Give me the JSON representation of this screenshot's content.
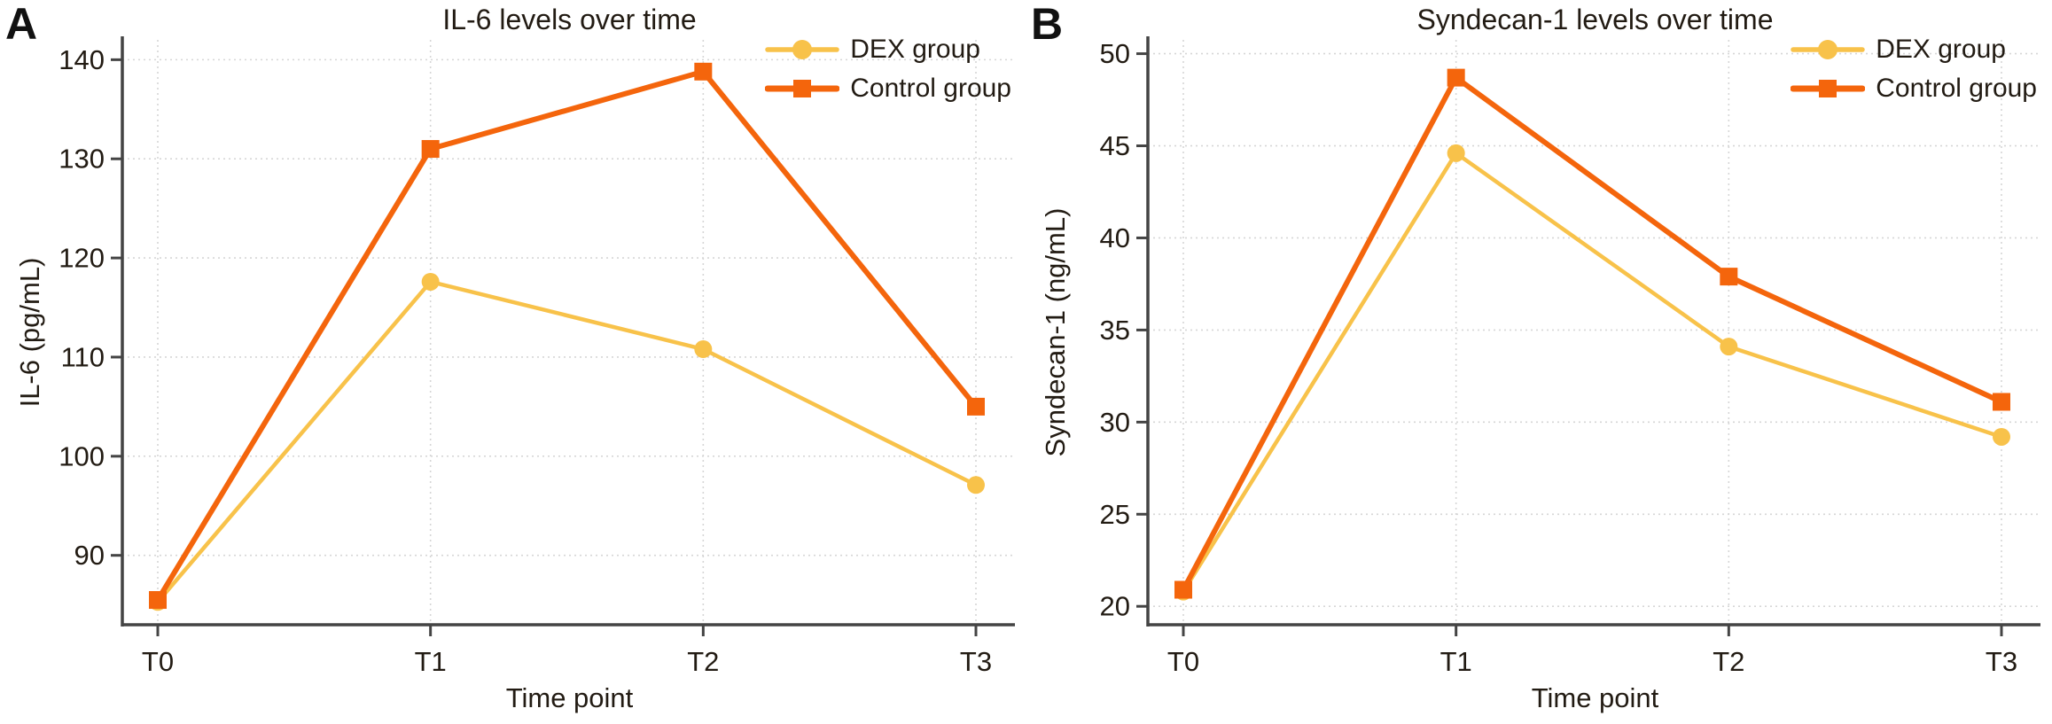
{
  "panel_labels": [
    "A",
    "B"
  ],
  "colors": {
    "dex": "#F8C24A",
    "control": "#F4650C",
    "grid": "#d6d6d6",
    "axis": "#444444",
    "text": "#221b13",
    "background": "#ffffff"
  },
  "chart_data": [
    {
      "type": "line",
      "title": "IL-6 levels over time",
      "xlabel": "Time point",
      "ylabel": "IL-6 (pg/mL)",
      "categories": [
        "T0",
        "T1",
        "T2",
        "T3"
      ],
      "series": [
        {
          "name": "DEX group",
          "color": "#F8C24A",
          "marker": "circle",
          "line_width": 4.5,
          "values": [
            85.3,
            117.6,
            110.8,
            97.1
          ]
        },
        {
          "name": "Control group",
          "color": "#F4650C",
          "marker": "square",
          "line_width": 6,
          "values": [
            85.5,
            131.0,
            138.8,
            105.0
          ]
        }
      ],
      "ylim": [
        83.0,
        142.0
      ],
      "yticks": [
        90,
        100,
        110,
        120,
        130,
        140
      ],
      "grid": true,
      "legend_position": "top-right"
    },
    {
      "type": "line",
      "title": "Syndecan-1 levels over time",
      "xlabel": "Time point",
      "ylabel": "Syndecan-1 (ng/mL)",
      "categories": [
        "T0",
        "T1",
        "T2",
        "T3"
      ],
      "series": [
        {
          "name": "DEX group",
          "color": "#F8C24A",
          "marker": "circle",
          "line_width": 4.5,
          "values": [
            20.8,
            44.6,
            34.1,
            29.2
          ]
        },
        {
          "name": "Control group",
          "color": "#F4650C",
          "marker": "square",
          "line_width": 6,
          "values": [
            20.9,
            48.7,
            37.9,
            31.1
          ]
        }
      ],
      "ylim": [
        19.0,
        50.75
      ],
      "yticks": [
        20,
        25,
        30,
        35,
        40,
        45,
        50
      ],
      "grid": true,
      "legend_position": "top-right"
    }
  ]
}
